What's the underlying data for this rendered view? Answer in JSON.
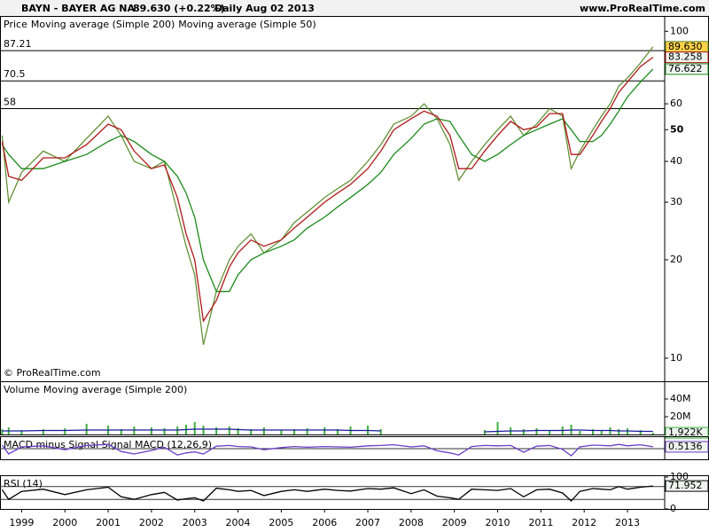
{
  "header": {
    "symbol": "BAYN - BAYER AG  NA",
    "quote": "89.630 (+0.22%)",
    "period": "Daily  Aug 02 2013",
    "site": "www.ProRealTime.com"
  },
  "copyright": "© ProRealTime.com",
  "chart_data": [
    {
      "type": "line",
      "log_scale": true,
      "x": [
        1998.55,
        1998.7,
        1999.0,
        1999.5,
        2000.0,
        2000.5,
        2001.0,
        2001.3,
        2001.6,
        2002.0,
        2002.3,
        2002.6,
        2002.8,
        2003.0,
        2003.2,
        2003.5,
        2003.8,
        2004.0,
        2004.3,
        2004.6,
        2005.0,
        2005.3,
        2005.6,
        2006.0,
        2006.3,
        2006.6,
        2007.0,
        2007.3,
        2007.6,
        2008.0,
        2008.3,
        2008.6,
        2008.9,
        2009.1,
        2009.4,
        2009.7,
        2010.0,
        2010.3,
        2010.6,
        2010.9,
        2011.2,
        2011.5,
        2011.7,
        2011.9,
        2012.2,
        2012.4,
        2012.6,
        2012.8,
        2013.0,
        2013.3,
        2013.59
      ],
      "xlim": [
        1998.5,
        2013.86
      ],
      "ylim": [
        8.5,
        110
      ],
      "yticks": [
        10,
        20,
        30,
        40,
        50,
        60,
        100
      ],
      "levels": [
        87.21,
        70.5,
        58
      ],
      "series": [
        {
          "name": "Price",
          "color": "#5a8a2a",
          "last_label": "89.630",
          "values": [
            48,
            30,
            37,
            43,
            40,
            47,
            55,
            48,
            40,
            38,
            40,
            28,
            22,
            18,
            11,
            16,
            20,
            22,
            24,
            21,
            23,
            26,
            28,
            31,
            33,
            35,
            40,
            45,
            52,
            55,
            60,
            54,
            45,
            35,
            40,
            45,
            50,
            55,
            48,
            52,
            58,
            55,
            38,
            43,
            50,
            55,
            60,
            68,
            72,
            80,
            89.63
          ]
        },
        {
          "name": "Moving average (Simple 200)",
          "color": "#1a8a1a",
          "last_label": "76.622",
          "values": [
            45,
            42,
            38,
            38,
            40,
            42,
            46,
            48,
            46,
            42,
            40,
            36,
            32,
            27,
            20,
            16,
            16,
            18,
            20,
            21,
            22,
            23,
            25,
            27,
            29,
            31,
            34,
            37,
            42,
            47,
            52,
            54,
            53,
            48,
            42,
            40,
            42,
            45,
            48,
            50,
            52,
            54,
            50,
            46,
            46,
            48,
            52,
            57,
            63,
            70,
            76.622
          ]
        },
        {
          "name": "Moving average (Simple 50)",
          "color": "#b01818",
          "last_label": "83.258",
          "values": [
            46,
            36,
            35,
            41,
            41,
            45,
            52,
            50,
            43,
            38,
            39,
            31,
            24,
            20,
            13,
            15,
            19,
            21,
            23,
            22,
            23,
            25,
            27,
            30,
            32,
            34,
            38,
            43,
            50,
            54,
            57,
            55,
            48,
            38,
            38,
            43,
            48,
            53,
            50,
            51,
            56,
            56,
            42,
            42,
            48,
            53,
            58,
            65,
            70,
            78,
            83.258
          ]
        }
      ]
    },
    {
      "type": "bar",
      "x": [
        1998.55,
        1998.7,
        1999.0,
        1999.5,
        2000.0,
        2000.5,
        2001.0,
        2001.3,
        2001.6,
        2002.0,
        2002.3,
        2002.6,
        2002.8,
        2003.0,
        2003.2,
        2003.5,
        2003.8,
        2004.0,
        2004.3,
        2004.6,
        2005.0,
        2005.3,
        2005.6,
        2006.0,
        2006.3,
        2006.6,
        2007.0,
        2007.3,
        2007.6,
        2008.0,
        2008.3,
        2008.6,
        2008.9,
        2009.1,
        2009.4,
        2009.7,
        2010.0,
        2010.3,
        2010.6,
        2010.9,
        2011.2,
        2011.5,
        2011.7,
        2011.9,
        2012.2,
        2012.4,
        2012.6,
        2012.8,
        2013.0,
        2013.3,
        2013.59
      ],
      "xlim": [
        1998.5,
        2013.86
      ],
      "ylim": [
        0,
        58
      ],
      "yticks": [
        {
          "value": 20,
          "label": "20M"
        },
        {
          "value": 40,
          "label": "40M"
        }
      ],
      "series": [
        {
          "name": "Volume",
          "color": "#3cb03c",
          "last_label": "1,922K",
          "values": [
            6,
            8,
            5,
            6,
            7,
            12,
            10,
            6,
            9,
            8,
            7,
            9,
            11,
            14,
            10,
            8,
            9,
            7,
            6,
            8,
            5,
            6,
            7,
            8,
            6,
            9,
            10,
            6,
            null,
            null,
            null,
            null,
            null,
            null,
            null,
            5,
            14,
            8,
            6,
            7,
            5,
            9,
            11,
            4,
            6,
            5,
            8,
            6,
            7,
            5,
            1.922
          ]
        },
        {
          "name": "Moving average (Simple 200)",
          "type": "line",
          "color": "#1a1aa0",
          "values": [
            4,
            4,
            4,
            4.5,
            4.5,
            5,
            5,
            5,
            5,
            5,
            5,
            5,
            5.5,
            6,
            6,
            6,
            6,
            5.5,
            5,
            5,
            5,
            5,
            5,
            5,
            5,
            4.5,
            4.5,
            4,
            null,
            null,
            null,
            null,
            null,
            null,
            null,
            3,
            3.5,
            4,
            4,
            4.5,
            4.5,
            4.5,
            5,
            5,
            4.5,
            4.5,
            4.5,
            4,
            4,
            3.5,
            3.5
          ]
        }
      ]
    },
    {
      "type": "line",
      "title": "MACD minus Signal Signal MACD (12,26,9)",
      "x": [
        1998.55,
        1998.7,
        1999.0,
        1999.5,
        2000.0,
        2000.5,
        2001.0,
        2001.3,
        2001.6,
        2002.0,
        2002.3,
        2002.6,
        2002.8,
        2003.0,
        2003.2,
        2003.5,
        2003.8,
        2004.0,
        2004.3,
        2004.6,
        2005.0,
        2005.3,
        2005.6,
        2006.0,
        2006.3,
        2006.6,
        2007.0,
        2007.3,
        2007.6,
        2008.0,
        2008.3,
        2008.6,
        2008.9,
        2009.1,
        2009.4,
        2009.7,
        2010.0,
        2010.3,
        2010.6,
        2010.9,
        2011.2,
        2011.5,
        2011.7,
        2011.9,
        2012.2,
        2012.4,
        2012.6,
        2012.8,
        2013.0,
        2013.3,
        2013.59
      ],
      "xlim": [
        1998.5,
        2013.86
      ],
      "ylim": [
        -3,
        3
      ],
      "levels": [
        0
      ],
      "series": [
        {
          "color": "#6a3cc8",
          "last_label": "0.5136",
          "values": [
            1,
            -1.5,
            0.5,
            0.8,
            -0.3,
            0.9,
            1.2,
            -0.8,
            -1.5,
            -0.5,
            0.4,
            -1.8,
            -1.2,
            -0.9,
            -1.5,
            0.7,
            0.9,
            0.6,
            0.5,
            -0.3,
            0.3,
            0.6,
            0.4,
            0.6,
            0.5,
            0.4,
            0.8,
            0.9,
            1.1,
            0.5,
            0.8,
            -0.6,
            -1.2,
            -1.8,
            0.6,
            0.9,
            0.8,
            0.9,
            -1,
            0.7,
            0.9,
            -0.2,
            -2,
            0.5,
            1,
            0.9,
            0.8,
            1.2,
            0.8,
            1.1,
            0.5136
          ]
        }
      ]
    },
    {
      "type": "line",
      "title": "RSI (14)",
      "x": [
        1998.55,
        1998.7,
        1999.0,
        1999.5,
        2000.0,
        2000.5,
        2001.0,
        2001.3,
        2001.6,
        2002.0,
        2002.3,
        2002.6,
        2002.8,
        2003.0,
        2003.2,
        2003.5,
        2003.8,
        2004.0,
        2004.3,
        2004.6,
        2005.0,
        2005.3,
        2005.6,
        2006.0,
        2006.3,
        2006.6,
        2007.0,
        2007.3,
        2007.6,
        2008.0,
        2008.3,
        2008.6,
        2008.9,
        2009.1,
        2009.4,
        2009.7,
        2010.0,
        2010.3,
        2010.6,
        2010.9,
        2011.2,
        2011.5,
        2011.7,
        2011.9,
        2012.2,
        2012.4,
        2012.6,
        2012.8,
        2013.0,
        2013.3,
        2013.59
      ],
      "xlim": [
        1998.5,
        2013.86
      ],
      "ylim": [
        0,
        100
      ],
      "yticks": [
        0,
        100
      ],
      "levels": [
        70,
        30
      ],
      "xticks": [
        1999,
        2000,
        2001,
        2002,
        2003,
        2004,
        2005,
        2006,
        2007,
        2008,
        2009,
        2010,
        2011,
        2012,
        2013
      ],
      "series": [
        {
          "color": "#000000",
          "last_label": "71.952",
          "values": [
            60,
            30,
            55,
            62,
            45,
            60,
            68,
            38,
            30,
            45,
            52,
            28,
            32,
            35,
            25,
            65,
            60,
            55,
            58,
            42,
            55,
            60,
            55,
            62,
            58,
            56,
            64,
            62,
            66,
            48,
            60,
            40,
            35,
            30,
            62,
            60,
            58,
            64,
            38,
            60,
            62,
            50,
            25,
            55,
            64,
            62,
            60,
            70,
            62,
            68,
            71.952
          ]
        }
      ]
    }
  ]
}
